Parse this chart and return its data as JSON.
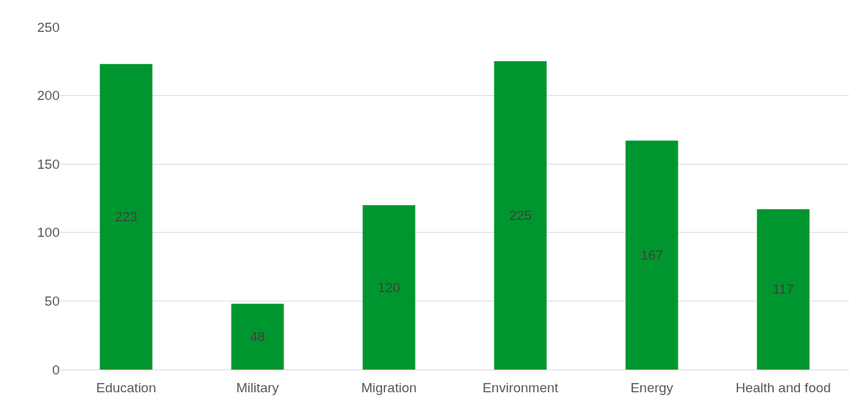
{
  "chart_data": {
    "type": "bar",
    "categories": [
      "Education",
      "Military",
      "Migration",
      "Environment",
      "Energy",
      "Health and food"
    ],
    "values": [
      223,
      48,
      120,
      225,
      167,
      117
    ],
    "color": "#00962f",
    "ylim": [
      0,
      250
    ],
    "yticks": [
      0,
      50,
      100,
      150,
      200,
      250
    ],
    "grid": "y",
    "data_labels": true
  }
}
